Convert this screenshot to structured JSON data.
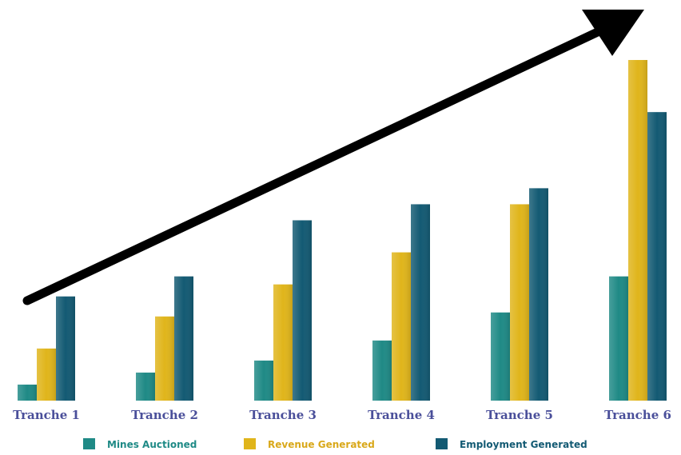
{
  "chart_data": {
    "type": "bar",
    "title": "",
    "xlabel": "",
    "ylabel": "",
    "categories": [
      "Tranche 1",
      "Tranche 2",
      "Tranche 3",
      "Tranche 4",
      "Tranche 5",
      "Tranche 6"
    ],
    "series": [
      {
        "name": "Mines Auctioned",
        "color": "#1f8a86",
        "values": [
          4,
          7,
          10,
          15,
          22,
          31
        ]
      },
      {
        "name": "Revenue Generated",
        "color": "#e0b51b",
        "values": [
          13,
          21,
          29,
          37,
          49,
          85
        ]
      },
      {
        "name": "Employment Generated",
        "color": "#135a73",
        "values": [
          26,
          31,
          45,
          49,
          53,
          72
        ]
      }
    ],
    "ylim": [
      0,
      88
    ],
    "grid": false,
    "legend_position": "bottom",
    "tick_label_color": "#4a4f9a",
    "trend_arrow": "up-right"
  }
}
